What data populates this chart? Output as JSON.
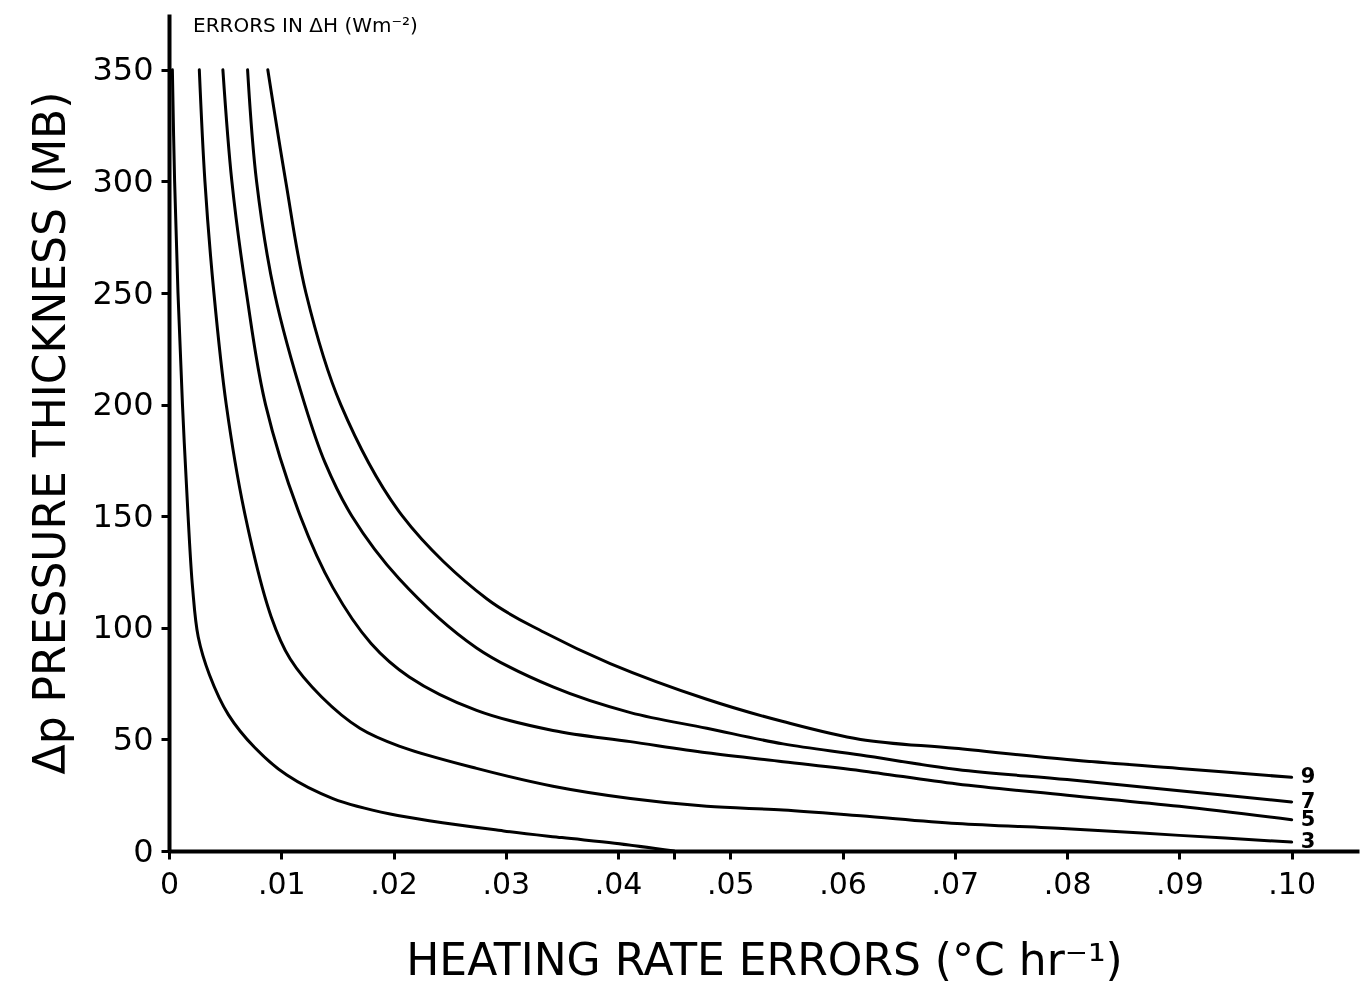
{
  "chart_data": {
    "type": "line",
    "annotations": [
      "ERRORS IN ΔH (Wm⁻²)"
    ],
    "xlabel": "HEATING RATE ERRORS (°C hr⁻¹)",
    "ylabel": "Δp PRESSURE THICKNESS (MB)",
    "xlim": [
      0,
      0.106
    ],
    "ylim": [
      0,
      375
    ],
    "xticks": [
      0,
      {
        "value": 0.01,
        "label": ".01"
      },
      {
        "value": 0.02,
        "label": ".02"
      },
      {
        "value": 0.03,
        "label": ".03"
      },
      {
        "value": 0.04,
        "label": ".04"
      },
      {
        "value": 0.045,
        "label": null
      },
      {
        "value": 0.05,
        "label": ".05"
      },
      {
        "value": 0.06,
        "label": ".06"
      },
      {
        "value": 0.07,
        "label": ".07"
      },
      {
        "value": 0.08,
        "label": ".08"
      },
      {
        "value": 0.09,
        "label": ".09"
      },
      {
        "value": 0.1,
        "label": ".10"
      }
    ],
    "yticks": [
      0,
      50,
      100,
      150,
      200,
      250,
      300,
      350
    ],
    "grid": false,
    "marker": "none",
    "line_style": "solid",
    "series": [
      {
        "color": "#000000",
        "x": [
          0.0003,
          0.0005,
          0.0008,
          0.0012,
          0.0017,
          0.0021,
          0.0026,
          0.0036,
          0.0053,
          0.0077,
          0.0105,
          0.0146,
          0.0197,
          0.0298,
          0.035,
          0.0397,
          0.045
        ],
        "values": [
          350,
          300,
          250,
          200,
          150,
          118,
          96,
          79,
          61,
          46,
          34,
          23.5,
          16.6,
          9,
          6,
          3.5,
          0
        ]
      },
      {
        "name": "3",
        "color": "#000000",
        "x": [
          0.0027,
          0.0032,
          0.004,
          0.0051,
          0.0068,
          0.0091,
          0.0108,
          0.0136,
          0.017,
          0.0205,
          0.0274,
          0.0342,
          0.0411,
          0.0479,
          0.0547,
          0.0616,
          0.0702,
          0.08,
          0.09,
          0.1
        ],
        "values": [
          350,
          300,
          250,
          200,
          150,
          105,
          86,
          69,
          55,
          47,
          37,
          29,
          23.5,
          20,
          18.4,
          15.8,
          12.3,
          10,
          7,
          4
        ]
      },
      {
        "name": "5",
        "color": "#000000",
        "x": [
          0.0048,
          0.0056,
          0.0069,
          0.0086,
          0.0117,
          0.0146,
          0.018,
          0.0214,
          0.0274,
          0.0342,
          0.0411,
          0.0479,
          0.0547,
          0.0616,
          0.0702,
          0.08,
          0.09,
          0.1
        ],
        "values": [
          350,
          300,
          250,
          200,
          150,
          118,
          93,
          78,
          63,
          54,
          49,
          44,
          40,
          36,
          30,
          25,
          20,
          14
        ]
      },
      {
        "name": "7",
        "color": "#000000",
        "x": [
          0.007,
          0.0078,
          0.0094,
          0.0121,
          0.0139,
          0.0163,
          0.0205,
          0.0274,
          0.0342,
          0.0411,
          0.0479,
          0.0547,
          0.0616,
          0.0702,
          0.08,
          0.09,
          0.1
        ],
        "values": [
          350,
          300,
          250,
          200,
          174,
          150,
          122,
          91,
          73.5,
          62,
          55,
          48,
          43,
          36.5,
          32,
          27,
          22
        ]
      },
      {
        "name": "9",
        "color": "#000000",
        "x": [
          0.0088,
          0.0104,
          0.0122,
          0.0153,
          0.0208,
          0.0283,
          0.0334,
          0.0393,
          0.0479,
          0.0547,
          0.0616,
          0.07,
          0.08,
          0.09,
          0.1
        ],
        "values": [
          350,
          300,
          250,
          200,
          150,
          113,
          98,
          84,
          68,
          58,
          50,
          46,
          41,
          37,
          33
        ]
      }
    ]
  }
}
